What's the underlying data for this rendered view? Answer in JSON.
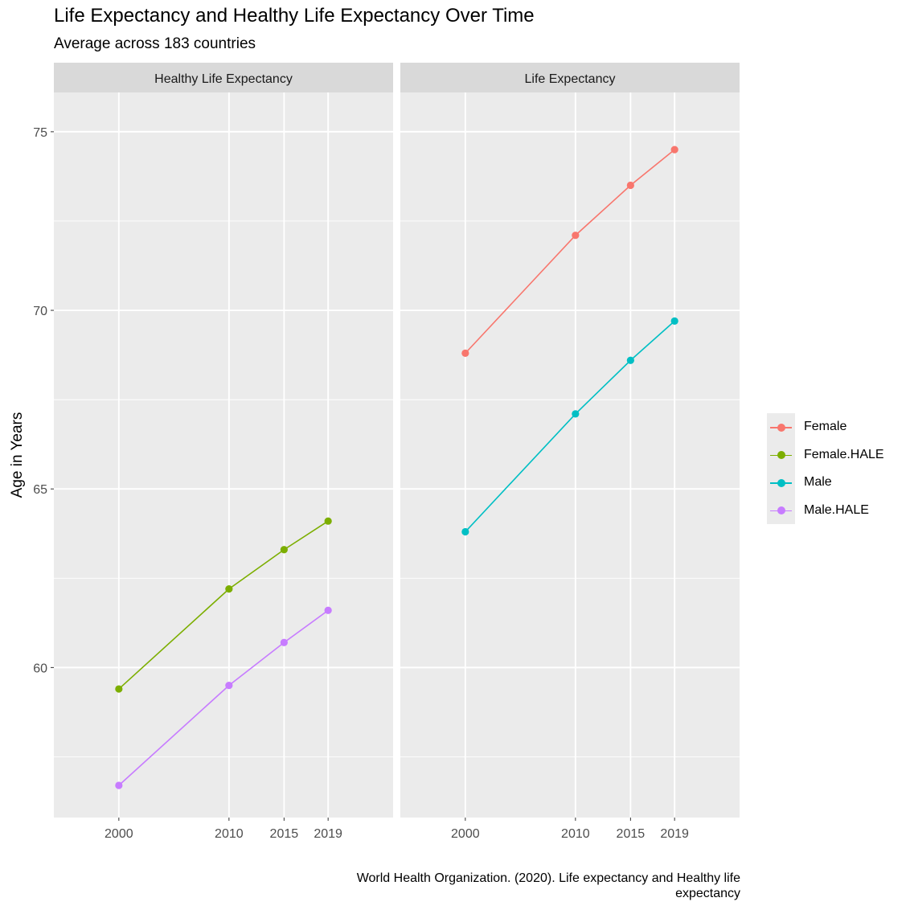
{
  "title": "Life Expectancy and Healthy Life Expectancy Over Time",
  "subtitle": "Average across 183 countries",
  "caption": "World Health Organization. (2020). Life expectancy and Healthy life expectancy",
  "chart_data": {
    "type": "line",
    "ylabel": "Age in Years",
    "xlabel": "",
    "x": [
      "2000",
      "2010",
      "2015",
      "2019"
    ],
    "ylim": [
      55.8,
      76.1
    ],
    "yticks": [
      60,
      65,
      70,
      75
    ],
    "grid": true,
    "legend_position": "right",
    "facets": [
      {
        "label": "Healthy Life Expectancy",
        "series": [
          {
            "name": "Female.HALE",
            "color": "#7CAE00",
            "values": [
              59.4,
              62.2,
              63.3,
              64.1
            ]
          },
          {
            "name": "Male.HALE",
            "color": "#C77CFF",
            "values": [
              56.7,
              59.5,
              60.7,
              61.6
            ]
          }
        ]
      },
      {
        "label": "Life Expectancy",
        "series": [
          {
            "name": "Female",
            "color": "#F8766D",
            "values": [
              68.8,
              72.1,
              73.5,
              74.5
            ]
          },
          {
            "name": "Male",
            "color": "#00BFC4",
            "values": [
              63.8,
              67.1,
              68.6,
              69.7
            ]
          }
        ]
      }
    ],
    "legend": [
      {
        "name": "Female",
        "color": "#F8766D"
      },
      {
        "name": "Female.HALE",
        "color": "#7CAE00"
      },
      {
        "name": "Male",
        "color": "#00BFC4"
      },
      {
        "name": "Male.HALE",
        "color": "#C77CFF"
      }
    ]
  }
}
